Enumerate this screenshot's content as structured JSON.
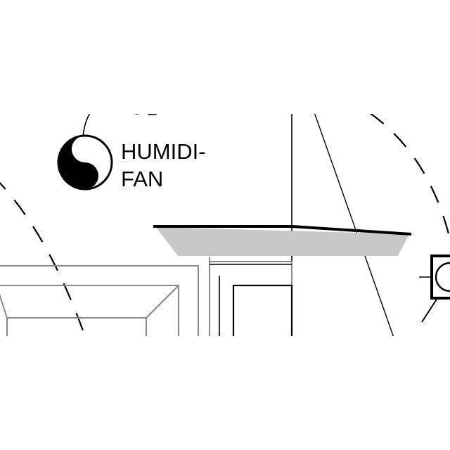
{
  "symbol": {
    "icon": "humidifier-fan-icon",
    "line1": "HUMIDI-",
    "line2": "FAN"
  },
  "colors": {
    "ink": "#000000",
    "shade": "#c8c8c8",
    "frame": "#888888",
    "background": "#ffffff"
  }
}
